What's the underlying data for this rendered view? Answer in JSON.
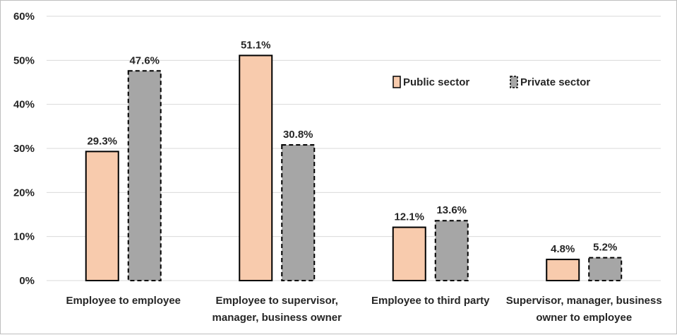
{
  "chart_data": {
    "type": "bar",
    "categories": [
      [
        "Employee to employee"
      ],
      [
        "Employee to supervisor,",
        "manager, business owner"
      ],
      [
        "Employee to third party"
      ],
      [
        "Supervisor, manager, business",
        "owner to employee"
      ]
    ],
    "series": [
      {
        "name": "Public sector",
        "values": [
          29.3,
          51.1,
          12.1,
          4.8
        ],
        "labels": [
          "29.3%",
          "51.1%",
          "12.1%",
          "4.8%"
        ],
        "color": "#f8cbad",
        "dashed": false
      },
      {
        "name": "Private sector",
        "values": [
          47.6,
          30.8,
          13.6,
          5.2
        ],
        "labels": [
          "47.6%",
          "30.8%",
          "13.6%",
          "5.2%"
        ],
        "color": "#a6a6a6",
        "dashed": true
      }
    ],
    "yticks": [
      "0%",
      "10%",
      "20%",
      "30%",
      "40%",
      "50%",
      "60%"
    ],
    "ylim": [
      0,
      60
    ],
    "grid": true,
    "legend": "top-right",
    "title": "",
    "xlabel": "",
    "ylabel": ""
  }
}
